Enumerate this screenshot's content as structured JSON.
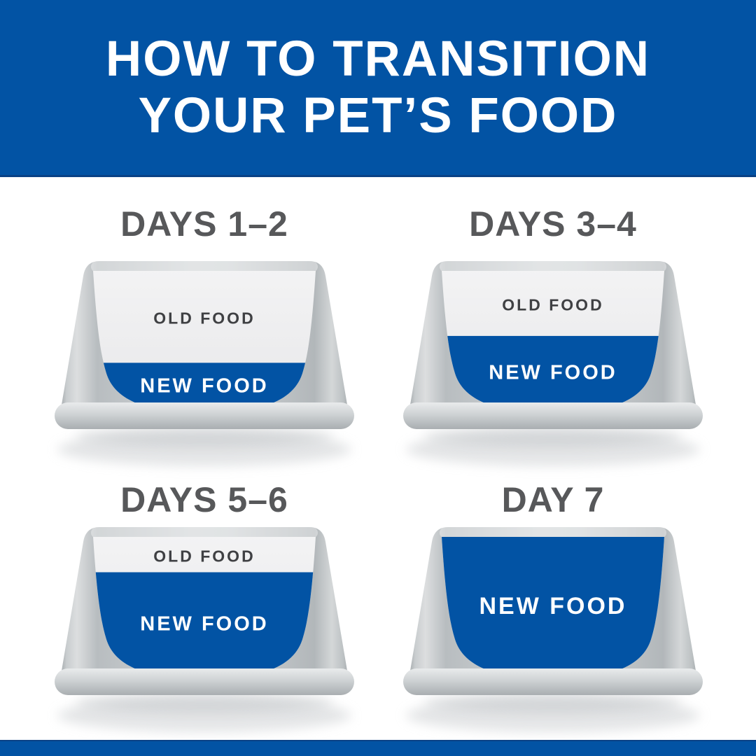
{
  "header": {
    "title_line1": "HOW TO TRANSITION",
    "title_line2": "YOUR PET’S FOOD"
  },
  "colors": {
    "brand_blue": "#0253a4",
    "brand_blue_dark_edge": "#0a4185",
    "old_food_bg": "#ebebed",
    "old_food_text": "#3f4043",
    "new_food_text": "#ffffff",
    "period_label_gray": "#57585a",
    "bowl_gray": "#c7cbce"
  },
  "bowls": [
    {
      "period": "DAYS 1–2",
      "old_label": "OLD FOOD",
      "new_label": "NEW FOOD",
      "old_pct": 65,
      "new_pct": 35
    },
    {
      "period": "DAYS 3–4",
      "old_label": "OLD FOOD",
      "new_label": "NEW FOOD",
      "old_pct": 46,
      "new_pct": 54
    },
    {
      "period": "DAYS 5–6",
      "old_label": "OLD FOOD",
      "new_label": "NEW FOOD",
      "old_pct": 25,
      "new_pct": 75
    },
    {
      "period": "DAY 7",
      "old_label": "",
      "new_label": "NEW FOOD",
      "old_pct": 0,
      "new_pct": 100
    }
  ]
}
